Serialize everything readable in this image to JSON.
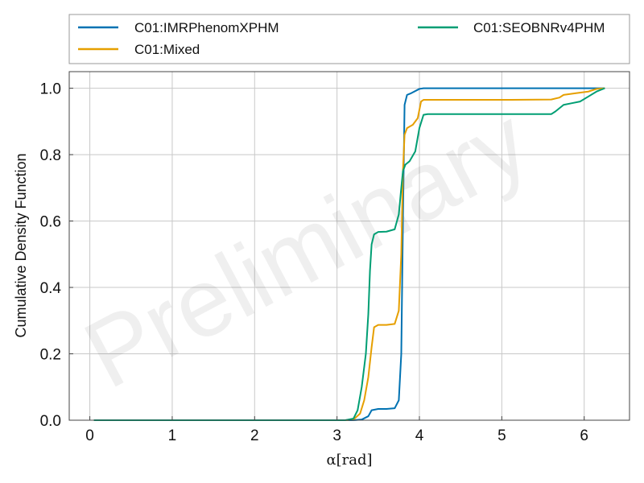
{
  "chart_data": {
    "type": "line",
    "xlabel": "α[rad]",
    "ylabel": "Cumulative Density Function",
    "xlim": [
      -0.25,
      6.55
    ],
    "ylim": [
      0.0,
      1.05
    ],
    "xticks": [
      "0",
      "1",
      "2",
      "3",
      "4",
      "5",
      "6"
    ],
    "yticks": [
      "0.0",
      "0.2",
      "0.4",
      "0.6",
      "0.8",
      "1.0"
    ],
    "grid": true,
    "legend_position": "top, above plot (two columns)",
    "watermark": "Preliminary",
    "series": [
      {
        "name": "C01:IMRPhenomXPHM",
        "color": "#0072B2",
        "points": [
          [
            0.05,
            0.0
          ],
          [
            3.0,
            0.0
          ],
          [
            3.2,
            0.0
          ],
          [
            3.3,
            0.002
          ],
          [
            3.38,
            0.012
          ],
          [
            3.42,
            0.03
          ],
          [
            3.5,
            0.034
          ],
          [
            3.6,
            0.034
          ],
          [
            3.7,
            0.036
          ],
          [
            3.75,
            0.06
          ],
          [
            3.78,
            0.2
          ],
          [
            3.8,
            0.6
          ],
          [
            3.82,
            0.95
          ],
          [
            3.85,
            0.98
          ],
          [
            3.9,
            0.985
          ],
          [
            4.0,
            0.998
          ],
          [
            4.05,
            1.0
          ],
          [
            5.0,
            1.0
          ],
          [
            6.25,
            1.0
          ]
        ]
      },
      {
        "name": "C01:Mixed",
        "color": "#E69F00",
        "points": [
          [
            0.05,
            0.0
          ],
          [
            3.1,
            0.0
          ],
          [
            3.2,
            0.002
          ],
          [
            3.28,
            0.02
          ],
          [
            3.33,
            0.06
          ],
          [
            3.38,
            0.13
          ],
          [
            3.42,
            0.22
          ],
          [
            3.45,
            0.28
          ],
          [
            3.5,
            0.287
          ],
          [
            3.6,
            0.287
          ],
          [
            3.7,
            0.29
          ],
          [
            3.75,
            0.33
          ],
          [
            3.78,
            0.5
          ],
          [
            3.8,
            0.75
          ],
          [
            3.82,
            0.86
          ],
          [
            3.85,
            0.88
          ],
          [
            3.92,
            0.89
          ],
          [
            3.98,
            0.91
          ],
          [
            4.02,
            0.96
          ],
          [
            4.05,
            0.965
          ],
          [
            5.0,
            0.965
          ],
          [
            5.6,
            0.966
          ],
          [
            5.7,
            0.972
          ],
          [
            5.75,
            0.98
          ],
          [
            5.9,
            0.985
          ],
          [
            6.05,
            0.99
          ],
          [
            6.15,
            0.998
          ],
          [
            6.25,
            1.0
          ]
        ]
      },
      {
        "name": "C01:SEOBNRv4PHM",
        "color": "#009E73",
        "points": [
          [
            0.05,
            0.0
          ],
          [
            3.1,
            0.0
          ],
          [
            3.2,
            0.005
          ],
          [
            3.25,
            0.03
          ],
          [
            3.3,
            0.1
          ],
          [
            3.35,
            0.2
          ],
          [
            3.38,
            0.32
          ],
          [
            3.4,
            0.45
          ],
          [
            3.42,
            0.53
          ],
          [
            3.45,
            0.56
          ],
          [
            3.5,
            0.567
          ],
          [
            3.6,
            0.568
          ],
          [
            3.7,
            0.575
          ],
          [
            3.75,
            0.62
          ],
          [
            3.78,
            0.7
          ],
          [
            3.8,
            0.75
          ],
          [
            3.83,
            0.77
          ],
          [
            3.88,
            0.78
          ],
          [
            3.95,
            0.81
          ],
          [
            4.0,
            0.88
          ],
          [
            4.05,
            0.92
          ],
          [
            4.1,
            0.922
          ],
          [
            5.0,
            0.922
          ],
          [
            5.6,
            0.922
          ],
          [
            5.65,
            0.93
          ],
          [
            5.75,
            0.95
          ],
          [
            5.85,
            0.955
          ],
          [
            5.95,
            0.96
          ],
          [
            6.05,
            0.975
          ],
          [
            6.15,
            0.99
          ],
          [
            6.25,
            1.0
          ]
        ]
      }
    ]
  }
}
